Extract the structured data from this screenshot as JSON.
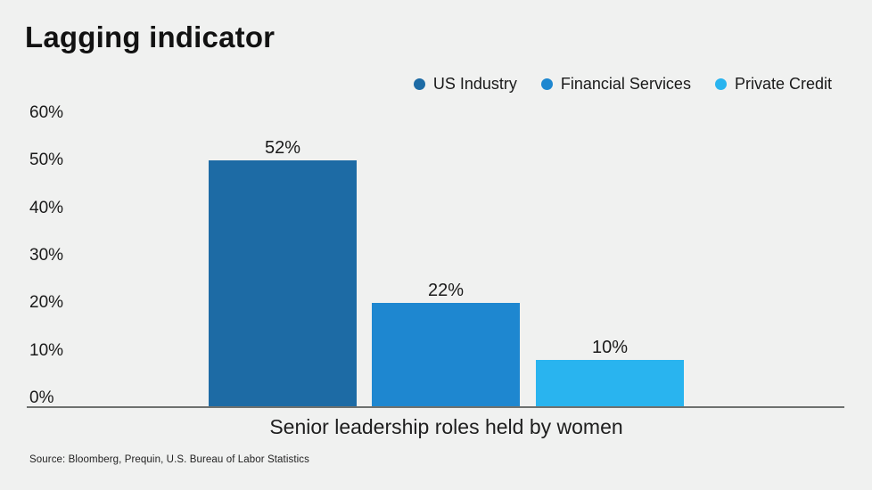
{
  "header": {
    "title": "Lagging indicator"
  },
  "chart_data": {
    "type": "bar",
    "title": "Lagging indicator",
    "categories": [
      "US Industry",
      "Financial Services",
      "Private Credit"
    ],
    "values": [
      52,
      22,
      10
    ],
    "value_labels": [
      "52%",
      "22%",
      "10%"
    ],
    "series_colors": [
      "#1d6ba5",
      "#1e87d0",
      "#29b4ef"
    ],
    "xlabel": "Senior leadership roles held by women",
    "ylabel": "",
    "ylim": [
      0,
      60
    ],
    "y_ticks": [
      "0%",
      "10%",
      "20%",
      "30%",
      "40%",
      "50%",
      "60%"
    ],
    "grid": false,
    "legend_position": "top-right",
    "legend": [
      {
        "label": "US Industry",
        "color": "#1d6ba5"
      },
      {
        "label": "Financial Services",
        "color": "#1e87d0"
      },
      {
        "label": "Private Credit",
        "color": "#29b4ef"
      }
    ],
    "background_color": "#f0f1f0",
    "axis_line_color": "#6e716f"
  },
  "footer": {
    "source": "Source: Bloomberg, Prequin, U.S. Bureau of Labor Statistics"
  }
}
